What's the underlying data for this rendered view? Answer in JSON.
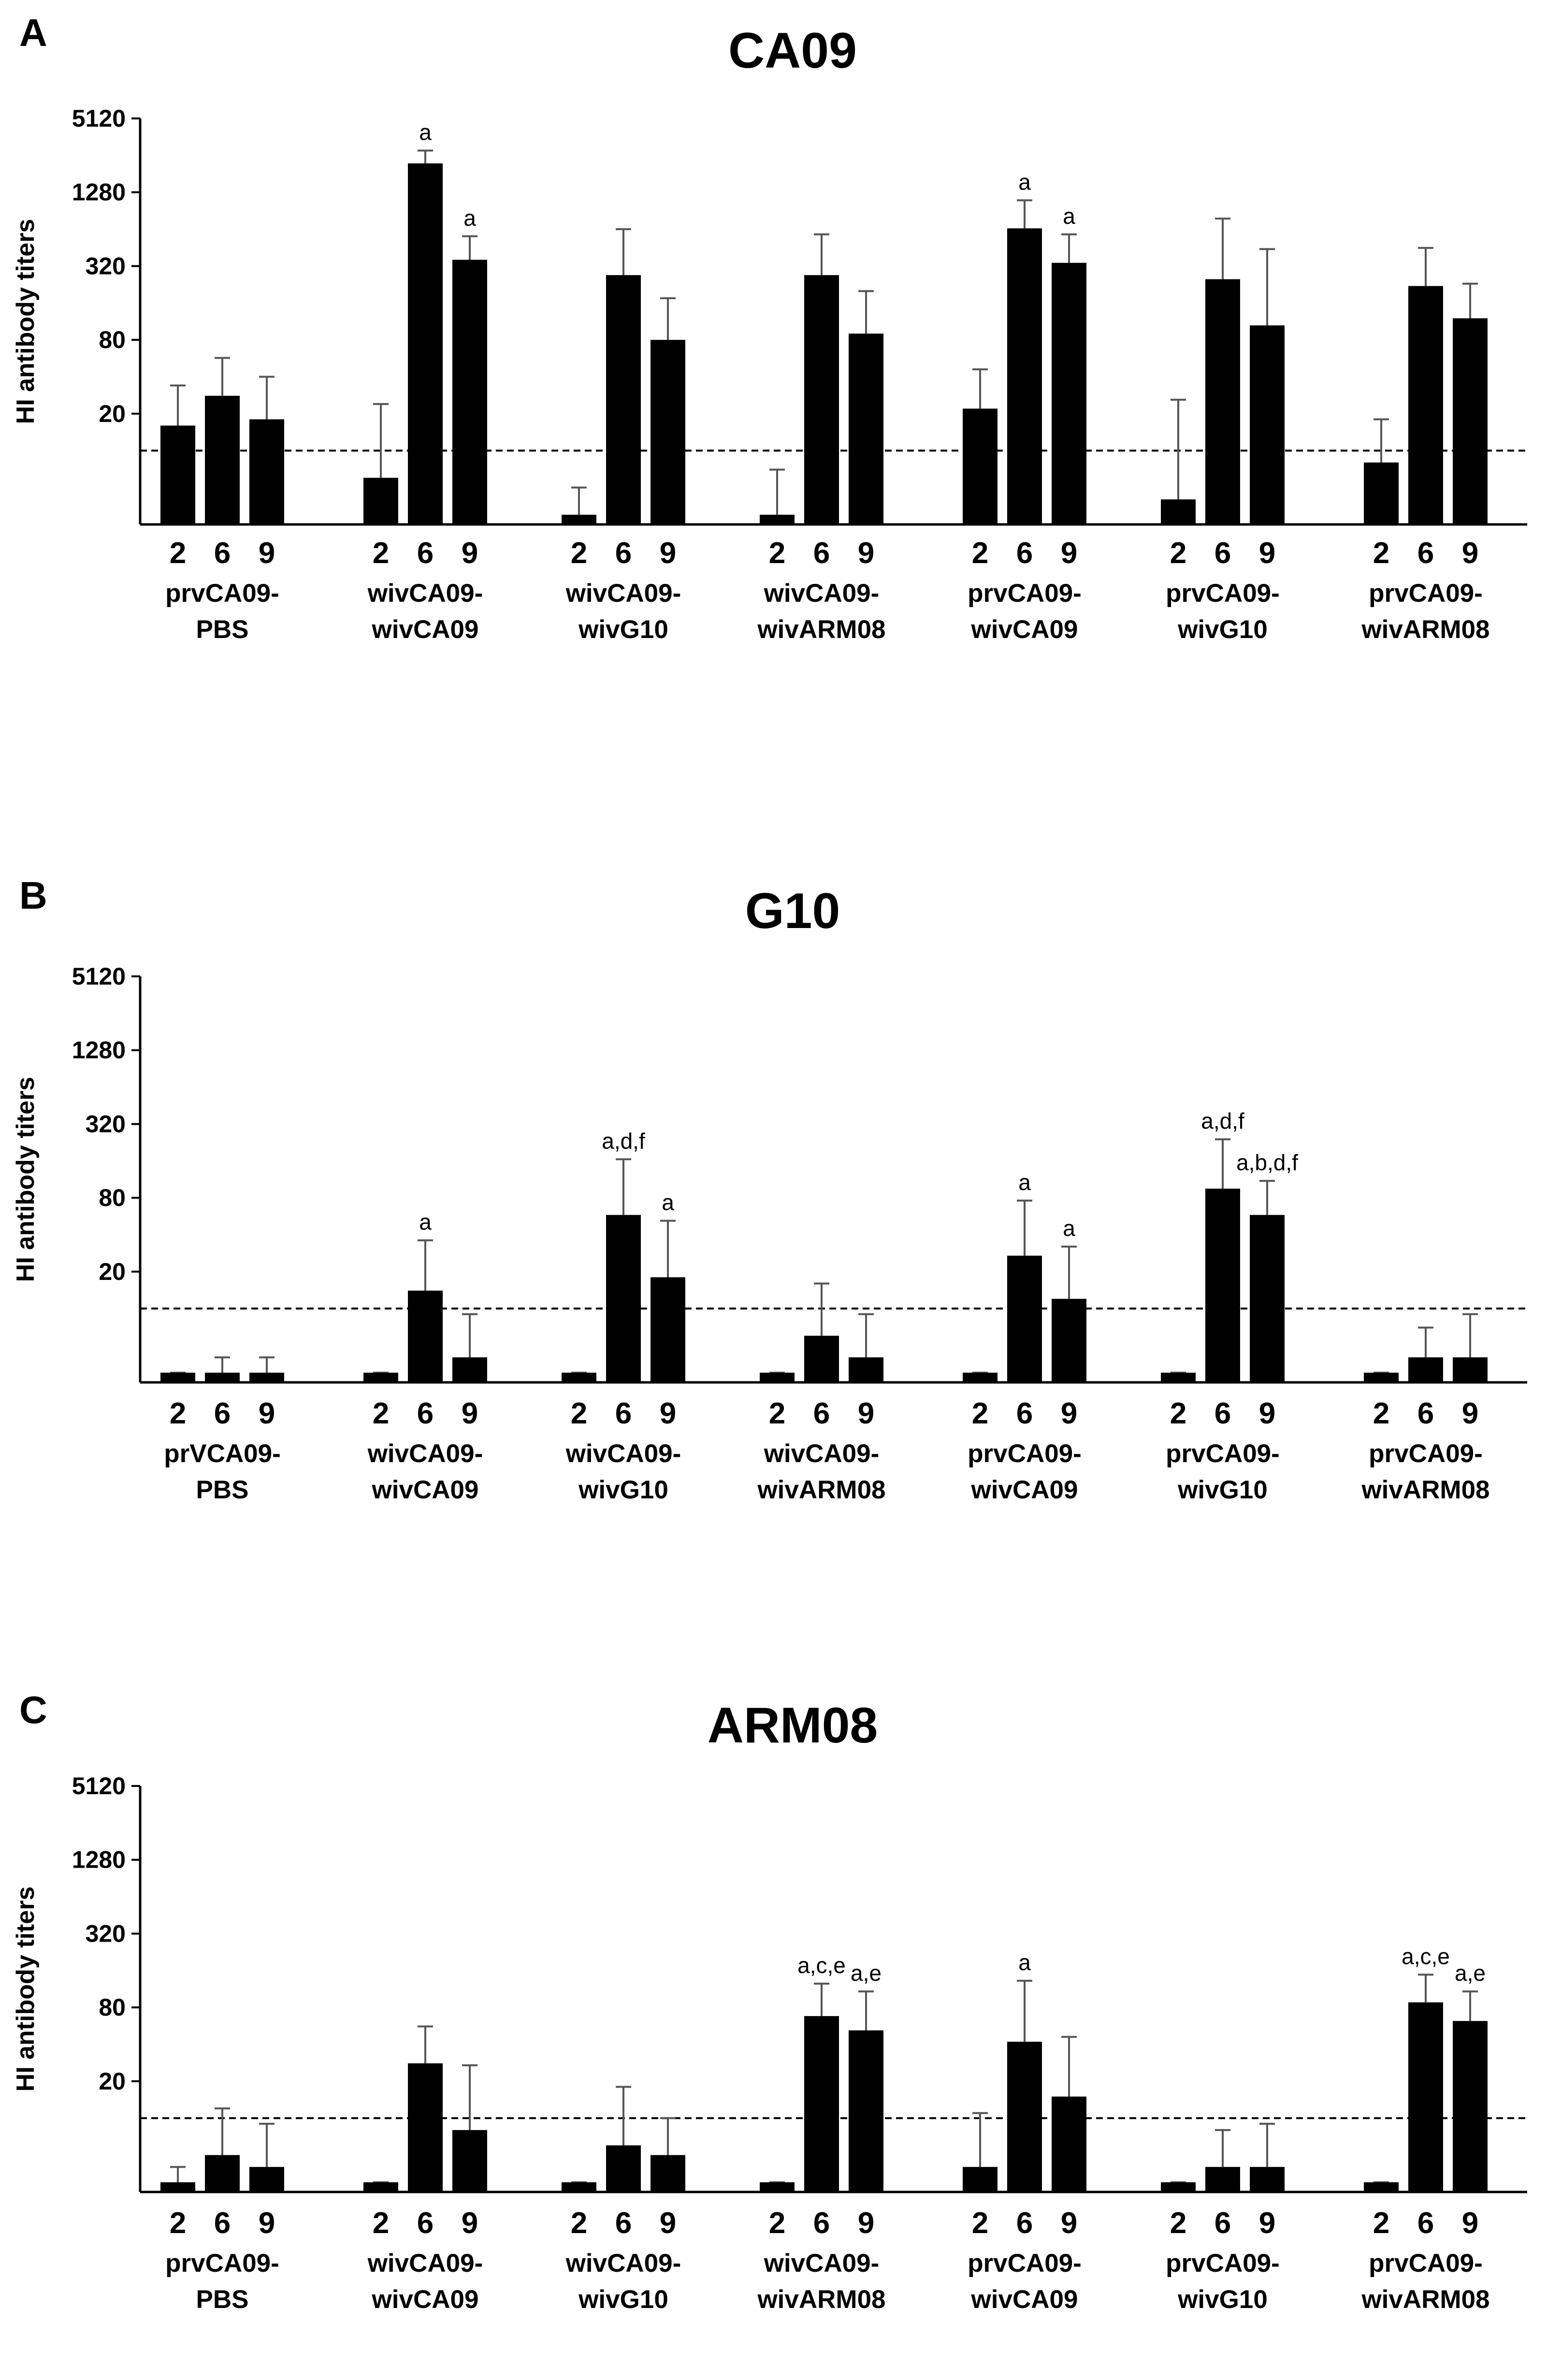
{
  "figure": {
    "colors": {
      "bar": "#000000",
      "errorbar": "#555555",
      "axis": "#000000",
      "background": "#ffffff"
    }
  },
  "chart_data": [
    {
      "panel": "A",
      "type": "bar",
      "title": "CA09",
      "ylabel": "HI antibody titers",
      "xlabel": "",
      "yscale": "log2",
      "ylim": [
        2.5,
        5120
      ],
      "yticks": [
        "20",
        "80",
        "320",
        "1280",
        "5120"
      ],
      "detection_limit": 10,
      "x_ticks": [
        "2",
        "6",
        "9"
      ],
      "groups": [
        {
          "name": "prvCA09-PBS",
          "line1": "prvCA09-",
          "line2": "PBS",
          "values": [
            16,
            28,
            18
          ],
          "errors": [
            34,
            57,
            40
          ],
          "annotations": [
            "",
            "",
            ""
          ]
        },
        {
          "name": "wivCA09-wivCA09",
          "line1": "wivCA09-",
          "line2": "wivCA09",
          "values": [
            6,
            2200,
            360
          ],
          "errors": [
            24,
            2800,
            560
          ],
          "annotations": [
            "",
            "a",
            "a"
          ]
        },
        {
          "name": "wivCA09-wivG10",
          "line1": "wivCA09-",
          "line2": "wivG10",
          "values": [
            3,
            270,
            80
          ],
          "errors": [
            5,
            640,
            175
          ],
          "annotations": [
            "",
            "",
            ""
          ]
        },
        {
          "name": "wivCA09-wivARM08",
          "line1": "wivCA09-",
          "line2": "wivARM08",
          "values": [
            3,
            270,
            90
          ],
          "errors": [
            7,
            580,
            200
          ],
          "annotations": [
            "",
            "",
            ""
          ]
        },
        {
          "name": "prvCA09-wivCA09",
          "line1": "prvCA09-",
          "line2": "wivCA09",
          "values": [
            22,
            650,
            340
          ],
          "errors": [
            46,
            1100,
            580
          ],
          "annotations": [
            "",
            "a",
            "a"
          ]
        },
        {
          "name": "prvCA09-wivG10",
          "line1": "prvCA09-",
          "line2": "wivG10",
          "values": [
            4,
            250,
            105
          ],
          "errors": [
            26,
            780,
            440
          ],
          "annotations": [
            "",
            "",
            ""
          ]
        },
        {
          "name": "prvCA09-wivARM08",
          "line1": "prvCA09-",
          "line2": "wivARM08",
          "values": [
            8,
            220,
            120
          ],
          "errors": [
            18,
            450,
            230
          ],
          "annotations": [
            "",
            "",
            ""
          ]
        }
      ]
    },
    {
      "panel": "B",
      "type": "bar",
      "title": "G10",
      "ylabel": "HI antibody titers",
      "xlabel": "",
      "yscale": "log2",
      "ylim": [
        2.5,
        5120
      ],
      "yticks": [
        "20",
        "80",
        "320",
        "1280",
        "5120"
      ],
      "detection_limit": 10,
      "x_ticks": [
        "2",
        "6",
        "9"
      ],
      "groups": [
        {
          "name": "prVCA09-PBS",
          "line1": "prVCA09-",
          "line2": "PBS",
          "values": [
            3,
            3,
            3
          ],
          "errors": [
            3,
            4,
            4
          ],
          "annotations": [
            "",
            "",
            ""
          ]
        },
        {
          "name": "wivCA09-wivCA09",
          "line1": "wivCA09-",
          "line2": "wivCA09",
          "values": [
            3,
            14,
            4
          ],
          "errors": [
            3,
            36,
            9
          ],
          "annotations": [
            "",
            "a",
            ""
          ]
        },
        {
          "name": "wivCA09-wivG10",
          "line1": "wivCA09-",
          "line2": "wivG10",
          "values": [
            3,
            58,
            18
          ],
          "errors": [
            3,
            165,
            52
          ],
          "annotations": [
            "",
            "a,d,f",
            "a"
          ]
        },
        {
          "name": "wivCA09-wivARM08",
          "line1": "wivCA09-",
          "line2": "wivARM08",
          "values": [
            3,
            6,
            4
          ],
          "errors": [
            3,
            16,
            9
          ],
          "annotations": [
            "",
            "",
            ""
          ]
        },
        {
          "name": "prvCA09-wivCA09",
          "line1": "prvCA09-",
          "line2": "wivCA09",
          "values": [
            3,
            27,
            12
          ],
          "errors": [
            3,
            76,
            32
          ],
          "annotations": [
            "",
            "a",
            "a"
          ]
        },
        {
          "name": "prvCA09-wivG10",
          "line1": "prvCA09-",
          "line2": "wivG10",
          "values": [
            3,
            95,
            58
          ],
          "errors": [
            3,
            240,
            110
          ],
          "annotations": [
            "",
            "a,d,f",
            "a,b,d,f"
          ]
        },
        {
          "name": "prvCA09-wivARM08",
          "line1": "prvCA09-",
          "line2": "wivARM08",
          "values": [
            3,
            4,
            4
          ],
          "errors": [
            3,
            7,
            9
          ],
          "annotations": [
            "",
            "",
            ""
          ]
        }
      ]
    },
    {
      "panel": "C",
      "type": "bar",
      "title": "ARM08",
      "ylabel": "HI antibody titers",
      "xlabel": "",
      "yscale": "log2",
      "ylim": [
        2.5,
        5120
      ],
      "yticks": [
        "20",
        "80",
        "320",
        "1280",
        "5120"
      ],
      "detection_limit": 10,
      "x_ticks": [
        "2",
        "6",
        "9"
      ],
      "groups": [
        {
          "name": "prvCA09-PBS",
          "line1": "prvCA09-",
          "line2": "PBS",
          "values": [
            3,
            5,
            4
          ],
          "errors": [
            4,
            12,
            9
          ],
          "annotations": [
            "",
            "",
            ""
          ]
        },
        {
          "name": "wivCA09-wivCA09",
          "line1": "wivCA09-",
          "line2": "wivCA09",
          "values": [
            3,
            28,
            8
          ],
          "errors": [
            3,
            56,
            27
          ],
          "annotations": [
            "",
            "",
            ""
          ]
        },
        {
          "name": "wivCA09-wivG10",
          "line1": "wivCA09-",
          "line2": "wivG10",
          "values": [
            3,
            6,
            5
          ],
          "errors": [
            3,
            18,
            10
          ],
          "annotations": [
            "",
            "",
            ""
          ]
        },
        {
          "name": "wivCA09-wivARM08",
          "line1": "wivCA09-",
          "line2": "wivARM08",
          "values": [
            3,
            68,
            52
          ],
          "errors": [
            3,
            125,
            108
          ],
          "annotations": [
            "",
            "a,c,e",
            "a,e"
          ]
        },
        {
          "name": "prvCA09-wivCA09",
          "line1": "prvCA09-",
          "line2": "wivCA09",
          "values": [
            4,
            42,
            15
          ],
          "errors": [
            11,
            132,
            46
          ],
          "annotations": [
            "",
            "a",
            ""
          ]
        },
        {
          "name": "prvCA09-wivG10",
          "line1": "prvCA09-",
          "line2": "wivG10",
          "values": [
            3,
            4,
            4
          ],
          "errors": [
            3,
            8,
            9
          ],
          "annotations": [
            "",
            "",
            ""
          ]
        },
        {
          "name": "prvCA09-wivARM08",
          "line1": "prvCA09-",
          "line2": "wivARM08",
          "values": [
            3,
            88,
            62
          ],
          "errors": [
            3,
            148,
            108
          ],
          "annotations": [
            "",
            "a,c,e",
            "a,e"
          ]
        }
      ]
    }
  ]
}
